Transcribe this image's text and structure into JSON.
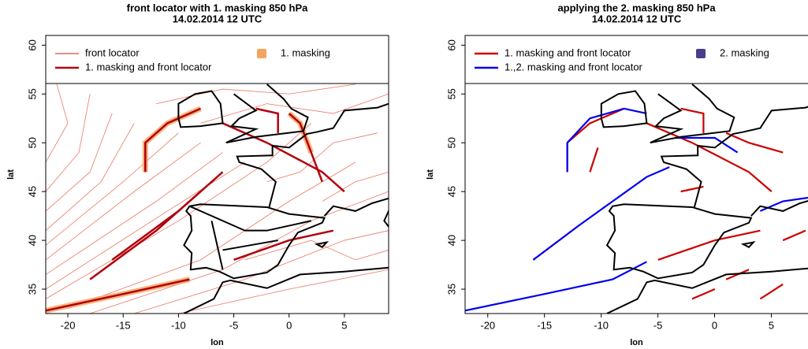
{
  "chart_data": [
    {
      "type": "map",
      "title": "front locator with 1. masking 850 hPa",
      "subtitle": "14.02.2014 12 UTC",
      "x_label": "lon",
      "y_label": "lat",
      "xlim": [
        -22,
        9
      ],
      "ylim": [
        32.5,
        61
      ],
      "xticks": [
        -20,
        -15,
        -10,
        -5,
        0,
        5
      ],
      "yticks": [
        35,
        40,
        45,
        50,
        55,
        60
      ],
      "legend": [
        {
          "name": "front locator",
          "color": "#d7191c",
          "marker": "thin-line"
        },
        {
          "name": "1. masking and front locator",
          "color": "#b2000c",
          "marker": "thick-line"
        },
        {
          "name": "1. masking",
          "color": "#f4a460",
          "marker": "square"
        }
      ]
    },
    {
      "type": "map",
      "title": "applying the 2. masking 850 hPa",
      "subtitle": "14.02.2014 12 UTC",
      "x_label": "lon",
      "y_label": "lat",
      "xlim": [
        -22,
        9
      ],
      "ylim": [
        32.5,
        61
      ],
      "xticks": [
        -20,
        -15,
        -10,
        -5,
        0,
        5
      ],
      "yticks": [
        35,
        40,
        45,
        50,
        55,
        60
      ],
      "legend": [
        {
          "name": "1. masking and front locator",
          "color": "#cc0000",
          "marker": "thick-line"
        },
        {
          "name": "1.,2. masking and front locator",
          "color": "#0000ee",
          "marker": "thick-line"
        },
        {
          "name": "2. masking",
          "color": "#483d8b",
          "marker": "square"
        }
      ]
    }
  ]
}
